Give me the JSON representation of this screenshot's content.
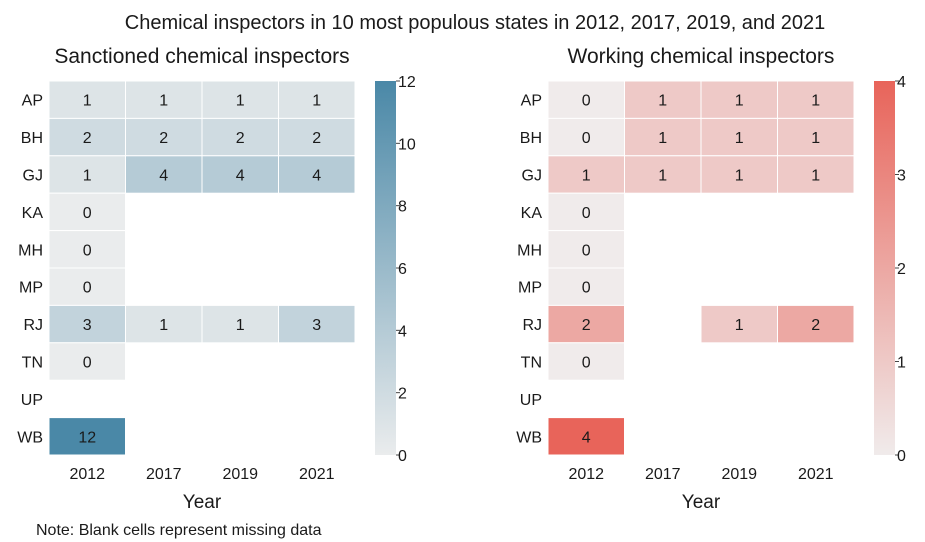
{
  "suptitle": "Chemical inspectors in 10 most populous states in 2012, 2017, 2019, and 2021",
  "note": "Note: Blank cells represent missing data",
  "chart_data": [
    {
      "type": "heatmap",
      "title": "Sanctioned chemical inspectors",
      "xlabel": "Year",
      "ylabel": "",
      "x": [
        "2012",
        "2017",
        "2019",
        "2021"
      ],
      "y": [
        "AP",
        "BH",
        "GJ",
        "KA",
        "MH",
        "MP",
        "RJ",
        "TN",
        "UP",
        "WB"
      ],
      "values": [
        [
          1,
          1,
          1,
          1
        ],
        [
          2,
          2,
          2,
          2
        ],
        [
          1,
          4,
          4,
          4
        ],
        [
          0,
          null,
          null,
          null
        ],
        [
          0,
          null,
          null,
          null
        ],
        [
          0,
          null,
          null,
          null
        ],
        [
          3,
          1,
          1,
          3
        ],
        [
          0,
          null,
          null,
          null
        ],
        [
          null,
          null,
          null,
          null
        ],
        [
          12,
          null,
          null,
          null
        ]
      ],
      "colorbar": {
        "min": 0,
        "max": 12,
        "ticks": [
          "0",
          "2",
          "4",
          "6",
          "8",
          "10",
          "12"
        ]
      },
      "color_low": "#eaeced",
      "color_high": "#4a88a7"
    },
    {
      "type": "heatmap",
      "title": "Working chemical inspectors",
      "xlabel": "Year",
      "ylabel": "",
      "x": [
        "2012",
        "2017",
        "2019",
        "2021"
      ],
      "y": [
        "AP",
        "BH",
        "GJ",
        "KA",
        "MH",
        "MP",
        "RJ",
        "TN",
        "UP",
        "WB"
      ],
      "values": [
        [
          0,
          1,
          1,
          1
        ],
        [
          0,
          1,
          1,
          1
        ],
        [
          1,
          1,
          1,
          1
        ],
        [
          0,
          null,
          null,
          null
        ],
        [
          0,
          null,
          null,
          null
        ],
        [
          0,
          null,
          null,
          null
        ],
        [
          2,
          null,
          1,
          2
        ],
        [
          0,
          null,
          null,
          null
        ],
        [
          null,
          null,
          null,
          null
        ],
        [
          4,
          null,
          null,
          null
        ]
      ],
      "colorbar": {
        "min": 0,
        "max": 4,
        "ticks": [
          "0",
          "1",
          "2",
          "3",
          "4"
        ]
      },
      "color_low": "#f0ebeb",
      "color_high": "#e8645a"
    }
  ]
}
